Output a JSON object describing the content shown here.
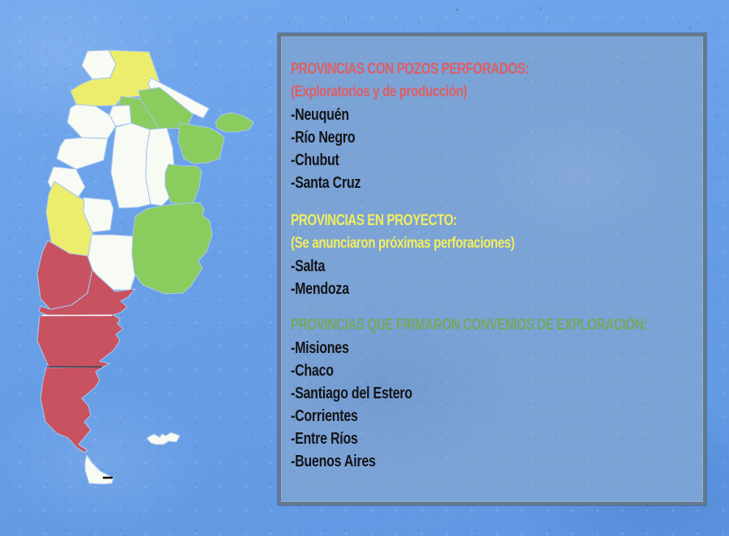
{
  "legend": {
    "sections": [
      {
        "title": "PROVINCIAS CON POZOS PERFORADOS:",
        "subtitle": "(Exploratorios y de producción)",
        "color": "#dd5f63",
        "items": [
          "-Neuquén",
          "-Río Negro",
          "-Chubut",
          "-Santa Cruz"
        ]
      },
      {
        "title": "PROVINCIAS EN PROYECTO:",
        "subtitle": "(Se anunciaron próximas perforaciones)",
        "color": "#f2ee5e",
        "items": [
          "-Salta",
          "-Mendoza"
        ]
      },
      {
        "title": "PROVINCIAS QUE FIRMARON CONVENIOS DE EXPLORACIÓN:",
        "subtitle": "",
        "color": "#74a85d",
        "items": [
          "-Misiones",
          "-Chaco",
          "-Santiago del Estero",
          "-Corrientes",
          "-Entre Ríos",
          "-Buenos Aires"
        ]
      }
    ],
    "item_color": "#141418"
  },
  "map": {
    "category_colors": {
      "drilled": "#c85260",
      "project": "#eded6d",
      "agreement": "#8acc5e",
      "none": "#f8faf4"
    },
    "border_color": "#a6c6ee",
    "detail_lines": {
      "rio_negro_chubut": "#ffffff",
      "chubut_santa_cruz": "#38424d",
      "tierra_del_fuego_mark": "#101010"
    },
    "provinces": [
      {
        "name": "jujuy",
        "status": "none"
      },
      {
        "name": "salta",
        "status": "project"
      },
      {
        "name": "formosa",
        "status": "none"
      },
      {
        "name": "chaco",
        "status": "agreement"
      },
      {
        "name": "santiago-del-estero",
        "status": "agreement"
      },
      {
        "name": "misiones",
        "status": "agreement"
      },
      {
        "name": "corrientes",
        "status": "agreement"
      },
      {
        "name": "tucuman",
        "status": "none"
      },
      {
        "name": "catamarca",
        "status": "none"
      },
      {
        "name": "la-rioja",
        "status": "none"
      },
      {
        "name": "san-juan",
        "status": "none"
      },
      {
        "name": "cordoba",
        "status": "none"
      },
      {
        "name": "santa-fe",
        "status": "none"
      },
      {
        "name": "entre-rios",
        "status": "agreement"
      },
      {
        "name": "san-luis",
        "status": "none"
      },
      {
        "name": "mendoza",
        "status": "project"
      },
      {
        "name": "la-pampa",
        "status": "none"
      },
      {
        "name": "buenos-aires",
        "status": "agreement"
      },
      {
        "name": "neuquen",
        "status": "drilled"
      },
      {
        "name": "rio-negro",
        "status": "drilled"
      },
      {
        "name": "chubut",
        "status": "drilled"
      },
      {
        "name": "santa-cruz",
        "status": "drilled"
      },
      {
        "name": "tierra-del-fuego",
        "status": "none"
      },
      {
        "name": "islas-malvinas",
        "status": "none"
      }
    ]
  },
  "background": {
    "ocean": "#689fe6",
    "panel": "#7ba3d6",
    "panel_border": "#66788a"
  }
}
